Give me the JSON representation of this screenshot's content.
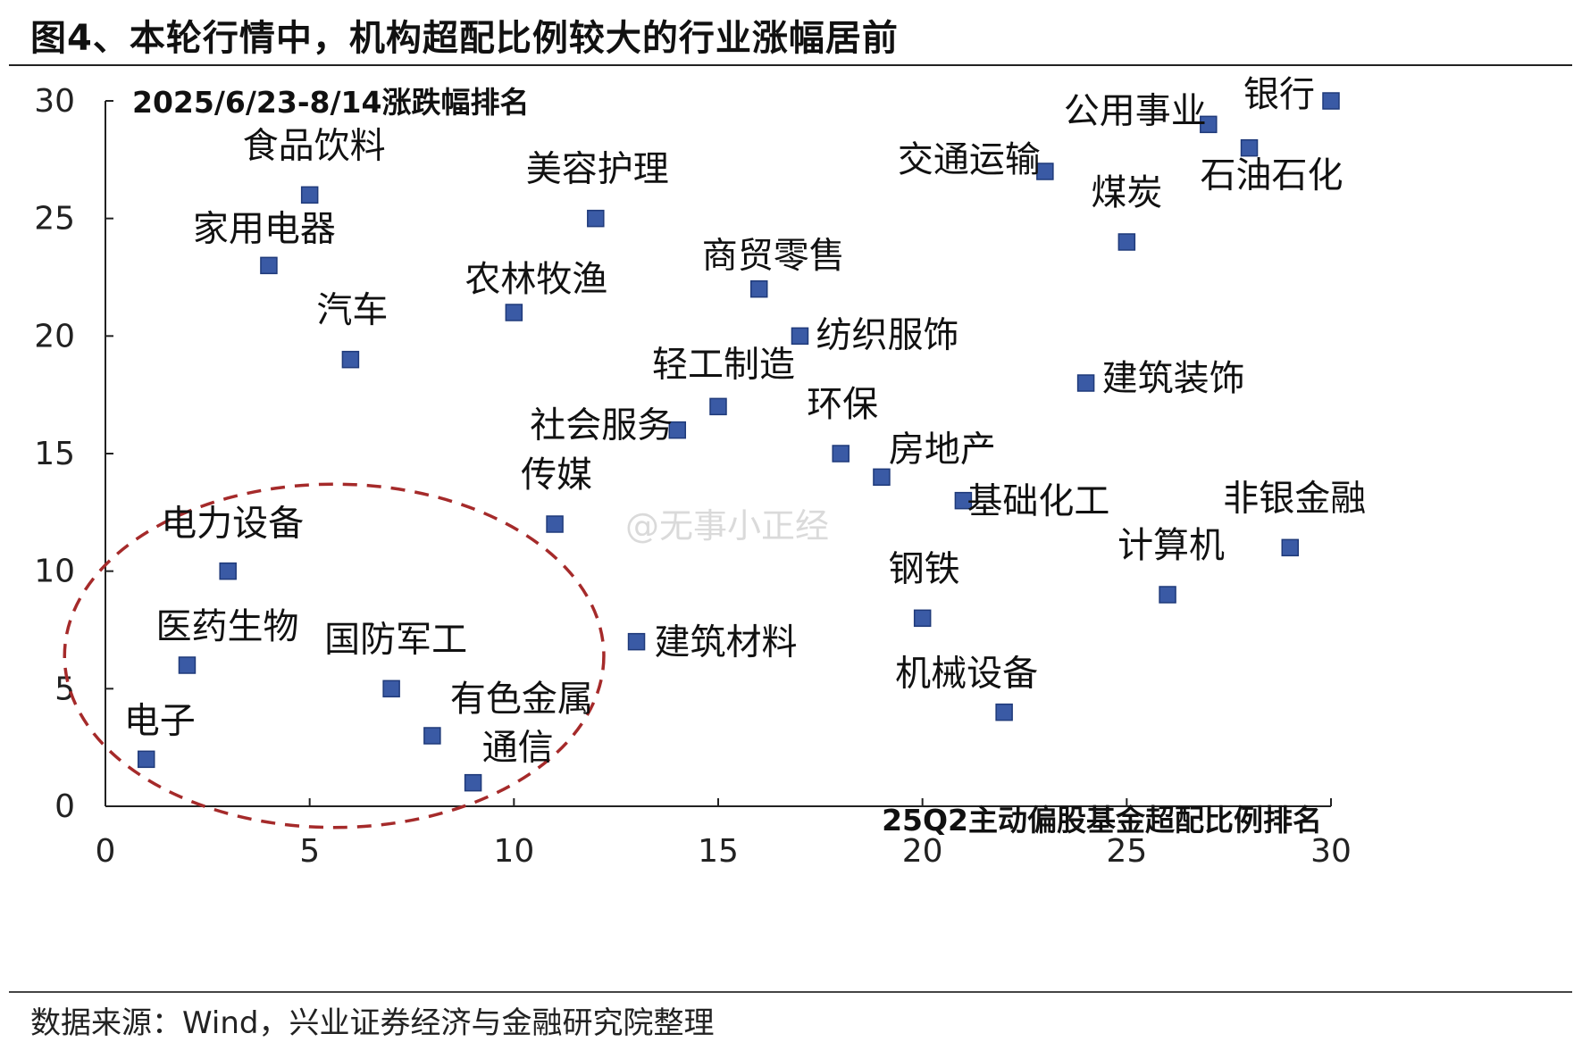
{
  "title": "图4、本轮行情中，机构超配比例较大的行业涨幅居前",
  "source": "数据来源：Wind，兴业证券经济与金融研究院整理",
  "watermark": "@无事小正经",
  "colors": {
    "marker": "#3a5aa5",
    "marker_edge": "#1f3a7a",
    "ellipse": "#a52a2a",
    "axis": "#222222"
  },
  "chart_data": {
    "type": "scatter",
    "title": "",
    "xlabel": "25Q2主动偏股基金超配比例排名",
    "ylabel": "2025/6/23-8/14涨跌幅排名",
    "xlim": [
      0,
      30
    ],
    "ylim": [
      0,
      30
    ],
    "xticks": [
      0,
      5,
      10,
      15,
      20,
      25,
      30
    ],
    "yticks": [
      0,
      5,
      10,
      15,
      20,
      25,
      30
    ],
    "grid": false,
    "points": [
      {
        "label": "电子",
        "x": 1,
        "y": 2
      },
      {
        "label": "医药生物",
        "x": 2,
        "y": 6
      },
      {
        "label": "电力设备",
        "x": 3,
        "y": 10
      },
      {
        "label": "家用电器",
        "x": 4,
        "y": 23
      },
      {
        "label": "食品饮料",
        "x": 5,
        "y": 26
      },
      {
        "label": "汽车",
        "x": 6,
        "y": 19
      },
      {
        "label": "国防军工",
        "x": 7,
        "y": 5
      },
      {
        "label": "有色金属",
        "x": 8,
        "y": 3
      },
      {
        "label": "通信",
        "x": 9,
        "y": 1
      },
      {
        "label": "农林牧渔",
        "x": 10,
        "y": 21
      },
      {
        "label": "传媒",
        "x": 11,
        "y": 12
      },
      {
        "label": "美容护理",
        "x": 12,
        "y": 25
      },
      {
        "label": "建筑材料",
        "x": 13,
        "y": 7
      },
      {
        "label": "社会服务",
        "x": 14,
        "y": 16
      },
      {
        "label": "轻工制造",
        "x": 15,
        "y": 17
      },
      {
        "label": "商贸零售",
        "x": 16,
        "y": 22
      },
      {
        "label": "纺织服饰",
        "x": 17,
        "y": 20
      },
      {
        "label": "环保",
        "x": 18,
        "y": 15
      },
      {
        "label": "房地产",
        "x": 19,
        "y": 14
      },
      {
        "label": "钢铁",
        "x": 20,
        "y": 8
      },
      {
        "label": "基础化工",
        "x": 21,
        "y": 13
      },
      {
        "label": "机械设备",
        "x": 22,
        "y": 4
      },
      {
        "label": "交通运输",
        "x": 23,
        "y": 27
      },
      {
        "label": "建筑装饰",
        "x": 24,
        "y": 18
      },
      {
        "label": "煤炭",
        "x": 25,
        "y": 24
      },
      {
        "label": "计算机",
        "x": 26,
        "y": 9
      },
      {
        "label": "公用事业",
        "x": 27,
        "y": 29
      },
      {
        "label": "石油石化",
        "x": 28,
        "y": 28
      },
      {
        "label": "非银金融",
        "x": 29,
        "y": 11
      },
      {
        "label": "银行",
        "x": 30,
        "y": 30
      }
    ],
    "annotations": [
      {
        "type": "dashed-ellipse",
        "cx": 5.6,
        "cy": 6.4,
        "rx": 6.6,
        "ry": 7.3
      }
    ]
  }
}
